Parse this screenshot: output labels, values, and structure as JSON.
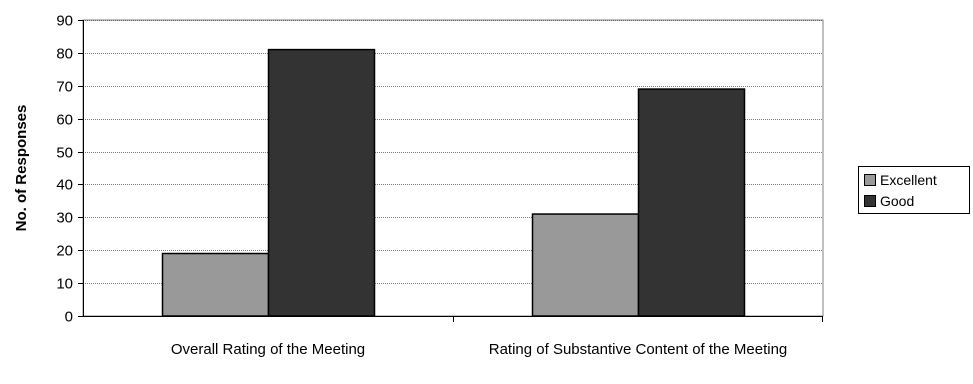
{
  "chart_data": {
    "type": "bar",
    "categories": [
      "Overall Rating of the Meeting",
      "Rating of Substantive Content of the Meeting"
    ],
    "series": [
      {
        "name": "Excellent",
        "values": [
          19,
          31
        ],
        "color": "#999999"
      },
      {
        "name": "Good",
        "values": [
          81,
          69
        ],
        "color": "#333333"
      }
    ],
    "title": "",
    "xlabel": "",
    "ylabel": "No. of Responses",
    "ylim": [
      0,
      90
    ],
    "yticks": [
      "0",
      "10",
      "20",
      "30",
      "40",
      "50",
      "60",
      "70",
      "80",
      "90"
    ],
    "grid": true,
    "legend_position": "right"
  }
}
